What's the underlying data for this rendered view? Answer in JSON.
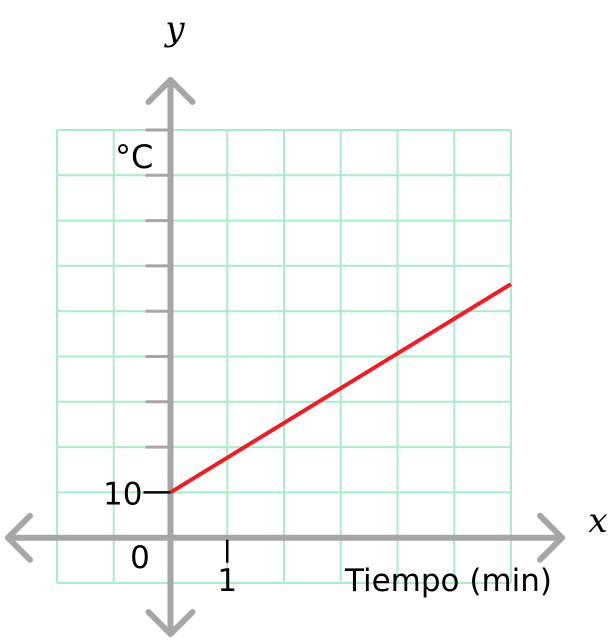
{
  "chart_data": {
    "type": "line",
    "x_axis_letter": "x",
    "y_axis_letter": "y",
    "xlabel": "Tiempo (min)",
    "ylabel": "°C",
    "x_tick_label": "1",
    "y_tick_label": "10",
    "origin_label": "0",
    "series": [
      {
        "x": [
          0,
          6
        ],
        "y": [
          10,
          14.6
        ]
      }
    ],
    "xlim": [
      -2,
      6
    ],
    "ylim": [
      8,
      18
    ],
    "grid": true,
    "colors": {
      "grid": "#a8ecc8",
      "axes": "#a6a6a6",
      "line": "#ee1c24"
    }
  }
}
